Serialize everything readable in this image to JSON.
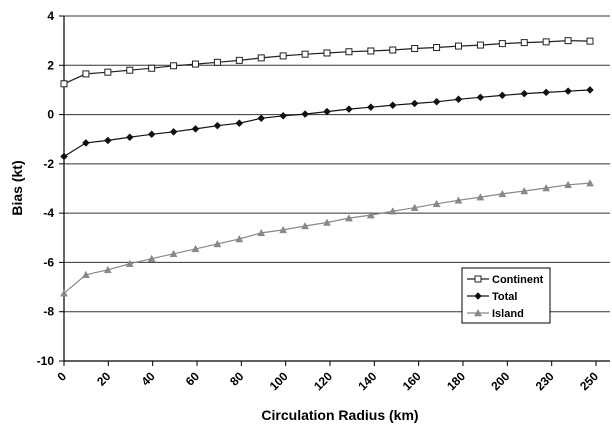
{
  "chart_data": {
    "type": "line",
    "xlabel": "Circulation Radius (km)",
    "ylabel": "Bias (kt)",
    "ylim": [
      -10,
      4
    ],
    "y_ticks": [
      "4",
      "2",
      "0",
      "-2",
      "-4",
      "-6",
      "-8",
      "-10"
    ],
    "y_tick_values": [
      4,
      2,
      0,
      -2,
      -4,
      -6,
      -8,
      -10
    ],
    "x_tick_labels": [
      "0",
      "20",
      "40",
      "60",
      "80",
      "100",
      "120",
      "140",
      "160",
      "180",
      "200",
      "230",
      "250"
    ],
    "grid": "horizontal",
    "legend_position": "lower-right",
    "series": [
      {
        "name": "Continent",
        "marker": "square-open",
        "color": "#222222",
        "values": [
          1.25,
          1.65,
          1.72,
          1.8,
          1.88,
          1.98,
          2.05,
          2.12,
          2.2,
          2.3,
          2.38,
          2.45,
          2.5,
          2.55,
          2.58,
          2.62,
          2.68,
          2.72,
          2.78,
          2.82,
          2.88,
          2.92,
          2.95,
          3.0,
          2.98
        ]
      },
      {
        "name": "Total",
        "marker": "diamond-filled",
        "color": "#111111",
        "values": [
          -1.7,
          -1.15,
          -1.05,
          -0.92,
          -0.8,
          -0.7,
          -0.58,
          -0.45,
          -0.35,
          -0.15,
          -0.05,
          0.02,
          0.12,
          0.22,
          0.3,
          0.38,
          0.45,
          0.52,
          0.62,
          0.7,
          0.78,
          0.85,
          0.9,
          0.95,
          1.0
        ]
      },
      {
        "name": "Island",
        "marker": "triangle-filled",
        "color": "#888888",
        "values": [
          -7.25,
          -6.5,
          -6.3,
          -6.05,
          -5.85,
          -5.65,
          -5.45,
          -5.25,
          -5.05,
          -4.8,
          -4.68,
          -4.52,
          -4.38,
          -4.2,
          -4.08,
          -3.92,
          -3.78,
          -3.62,
          -3.48,
          -3.35,
          -3.22,
          -3.1,
          -2.98,
          -2.85,
          -2.78
        ]
      }
    ]
  }
}
